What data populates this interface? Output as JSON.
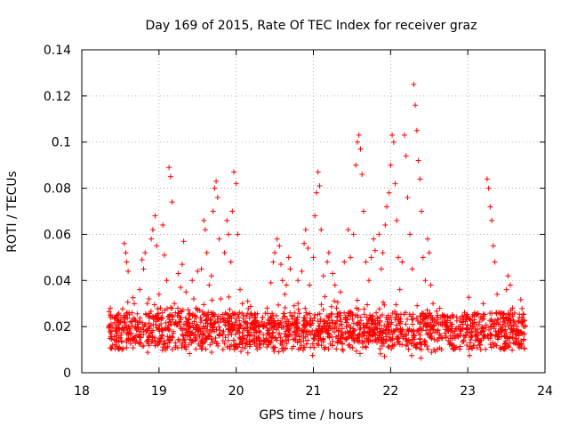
{
  "chart_data": {
    "type": "scatter",
    "title": "Day 169 of 2015, Rate Of TEC Index for receiver graz",
    "xlabel": "GPS time / hours",
    "ylabel": "ROTI / TECUs",
    "xlim": [
      18,
      24
    ],
    "ylim": [
      0,
      0.14
    ],
    "x_ticks": [
      18,
      19,
      20,
      21,
      22,
      23,
      24
    ],
    "x_tick_labels": [
      "18",
      "19",
      "20",
      "21",
      "22",
      "23",
      "24"
    ],
    "y_ticks": [
      0,
      0.02,
      0.04,
      0.06,
      0.08,
      0.1,
      0.12,
      0.14
    ],
    "y_tick_labels": [
      "0",
      "0.02",
      "0.04",
      "0.06",
      "0.08",
      "0.1",
      "0.12",
      "0.14"
    ],
    "grid": true,
    "marker": "plus",
    "color": "#ff0000",
    "series": [
      {
        "name": "ROTI graz",
        "points": [
          [
            18.35,
            0.02
          ],
          [
            18.37,
            0.028
          ],
          [
            18.4,
            0.012
          ],
          [
            18.42,
            0.024
          ],
          [
            18.45,
            0.018
          ],
          [
            18.48,
            0.015
          ],
          [
            18.5,
            0.022
          ],
          [
            18.52,
            0.01
          ],
          [
            18.55,
            0.056
          ],
          [
            18.57,
            0.052
          ],
          [
            18.58,
            0.048
          ],
          [
            18.6,
            0.044
          ],
          [
            18.62,
            0.019
          ],
          [
            18.65,
            0.026
          ],
          [
            18.68,
            0.03
          ],
          [
            18.7,
            0.016
          ],
          [
            18.72,
            0.021
          ],
          [
            18.75,
            0.036
          ],
          [
            18.78,
            0.049
          ],
          [
            18.8,
            0.045
          ],
          [
            18.82,
            0.052
          ],
          [
            18.85,
            0.014
          ],
          [
            18.87,
            0.032
          ],
          [
            18.9,
            0.058
          ],
          [
            18.92,
            0.062
          ],
          [
            18.95,
            0.068
          ],
          [
            18.97,
            0.055
          ],
          [
            19.0,
            0.034
          ],
          [
            19.02,
            0.028
          ],
          [
            19.05,
            0.064
          ],
          [
            19.07,
            0.051
          ],
          [
            19.1,
            0.04
          ],
          [
            19.13,
            0.089
          ],
          [
            19.15,
            0.085
          ],
          [
            19.17,
            0.074
          ],
          [
            19.2,
            0.03
          ],
          [
            19.22,
            0.022
          ],
          [
            19.25,
            0.043
          ],
          [
            19.28,
            0.037
          ],
          [
            19.3,
            0.047
          ],
          [
            19.32,
            0.057
          ],
          [
            19.35,
            0.035
          ],
          [
            19.38,
            0.018
          ],
          [
            19.4,
            0.025
          ],
          [
            19.43,
            0.04
          ],
          [
            19.45,
            0.032
          ],
          [
            19.48,
            0.028
          ],
          [
            19.5,
            0.044
          ],
          [
            19.55,
            0.045
          ],
          [
            19.58,
            0.066
          ],
          [
            19.6,
            0.062
          ],
          [
            19.62,
            0.052
          ],
          [
            19.65,
            0.038
          ],
          [
            19.68,
            0.042
          ],
          [
            19.7,
            0.07
          ],
          [
            19.72,
            0.08
          ],
          [
            19.74,
            0.083
          ],
          [
            19.76,
            0.076
          ],
          [
            19.78,
            0.058
          ],
          [
            19.8,
            0.032
          ],
          [
            19.85,
            0.052
          ],
          [
            19.88,
            0.066
          ],
          [
            19.9,
            0.06
          ],
          [
            19.93,
            0.048
          ],
          [
            19.95,
            0.07
          ],
          [
            19.97,
            0.087
          ],
          [
            20.0,
            0.082
          ],
          [
            20.02,
            0.06
          ],
          [
            20.05,
            0.036
          ],
          [
            20.08,
            0.03
          ],
          [
            20.1,
            0.022
          ],
          [
            20.15,
            0.031
          ],
          [
            20.2,
            0.019
          ],
          [
            20.25,
            0.024
          ],
          [
            20.3,
            0.012
          ],
          [
            20.35,
            0.02
          ],
          [
            20.4,
            0.028
          ],
          [
            20.45,
            0.039
          ],
          [
            20.48,
            0.048
          ],
          [
            20.5,
            0.052
          ],
          [
            20.53,
            0.058
          ],
          [
            20.56,
            0.055
          ],
          [
            20.58,
            0.047
          ],
          [
            20.6,
            0.04
          ],
          [
            20.63,
            0.034
          ],
          [
            20.65,
            0.038
          ],
          [
            20.68,
            0.05
          ],
          [
            20.7,
            0.045
          ],
          [
            20.75,
            0.029
          ],
          [
            20.8,
            0.04
          ],
          [
            20.85,
            0.044
          ],
          [
            20.88,
            0.056
          ],
          [
            20.9,
            0.062
          ],
          [
            20.93,
            0.054
          ],
          [
            20.95,
            0.038
          ],
          [
            21.0,
            0.05
          ],
          [
            21.02,
            0.068
          ],
          [
            21.04,
            0.078
          ],
          [
            21.06,
            0.087
          ],
          [
            21.08,
            0.081
          ],
          [
            21.1,
            0.062
          ],
          [
            21.13,
            0.042
          ],
          [
            21.15,
            0.033
          ],
          [
            21.18,
            0.048
          ],
          [
            21.2,
            0.052
          ],
          [
            21.25,
            0.043
          ],
          [
            21.28,
            0.038
          ],
          [
            21.3,
            0.028
          ],
          [
            21.35,
            0.035
          ],
          [
            21.4,
            0.048
          ],
          [
            21.45,
            0.062
          ],
          [
            21.48,
            0.05
          ],
          [
            21.52,
            0.06
          ],
          [
            21.55,
            0.09
          ],
          [
            21.57,
            0.1
          ],
          [
            21.59,
            0.103
          ],
          [
            21.61,
            0.097
          ],
          [
            21.63,
            0.086
          ],
          [
            21.65,
            0.07
          ],
          [
            21.68,
            0.048
          ],
          [
            21.72,
            0.04
          ],
          [
            21.75,
            0.05
          ],
          [
            21.78,
            0.058
          ],
          [
            21.8,
            0.053
          ],
          [
            21.85,
            0.06
          ],
          [
            21.88,
            0.045
          ],
          [
            21.9,
            0.052
          ],
          [
            21.93,
            0.064
          ],
          [
            21.95,
            0.072
          ],
          [
            21.98,
            0.078
          ],
          [
            22.0,
            0.09
          ],
          [
            22.02,
            0.103
          ],
          [
            22.04,
            0.1
          ],
          [
            22.06,
            0.082
          ],
          [
            22.08,
            0.066
          ],
          [
            22.1,
            0.05
          ],
          [
            22.12,
            0.036
          ],
          [
            22.15,
            0.048
          ],
          [
            22.18,
            0.103
          ],
          [
            22.2,
            0.094
          ],
          [
            22.22,
            0.076
          ],
          [
            22.25,
            0.06
          ],
          [
            22.28,
            0.045
          ],
          [
            22.3,
            0.125
          ],
          [
            22.32,
            0.116
          ],
          [
            22.34,
            0.105
          ],
          [
            22.36,
            0.092
          ],
          [
            22.38,
            0.084
          ],
          [
            22.4,
            0.07
          ],
          [
            22.42,
            0.05
          ],
          [
            22.45,
            0.04
          ],
          [
            22.48,
            0.058
          ],
          [
            22.5,
            0.052
          ],
          [
            22.52,
            0.038
          ],
          [
            22.55,
            0.03
          ],
          [
            22.6,
            0.024
          ],
          [
            22.65,
            0.016
          ],
          [
            22.7,
            0.022
          ],
          [
            22.75,
            0.018
          ],
          [
            22.8,
            0.025
          ],
          [
            22.85,
            0.011
          ],
          [
            22.9,
            0.02
          ],
          [
            22.95,
            0.016
          ],
          [
            23.0,
            0.024
          ],
          [
            23.05,
            0.018
          ],
          [
            23.1,
            0.014
          ],
          [
            23.15,
            0.022
          ],
          [
            23.2,
            0.03
          ],
          [
            23.25,
            0.084
          ],
          [
            23.27,
            0.08
          ],
          [
            23.29,
            0.072
          ],
          [
            23.31,
            0.066
          ],
          [
            23.33,
            0.055
          ],
          [
            23.35,
            0.048
          ],
          [
            23.38,
            0.034
          ],
          [
            23.4,
            0.026
          ],
          [
            23.45,
            0.02
          ],
          [
            23.5,
            0.036
          ],
          [
            23.52,
            0.042
          ],
          [
            23.55,
            0.038
          ],
          [
            23.58,
            0.028
          ],
          [
            23.6,
            0.022
          ],
          [
            23.65,
            0.017
          ],
          [
            23.7,
            0.024
          ],
          [
            23.72,
            0.014
          ],
          [
            23.74,
            0.02
          ]
        ],
        "band": {
          "x_range": [
            18.35,
            23.75
          ],
          "min_value": 0.005,
          "typical_value": 0.018,
          "max_value": 0.034
        }
      }
    ]
  }
}
